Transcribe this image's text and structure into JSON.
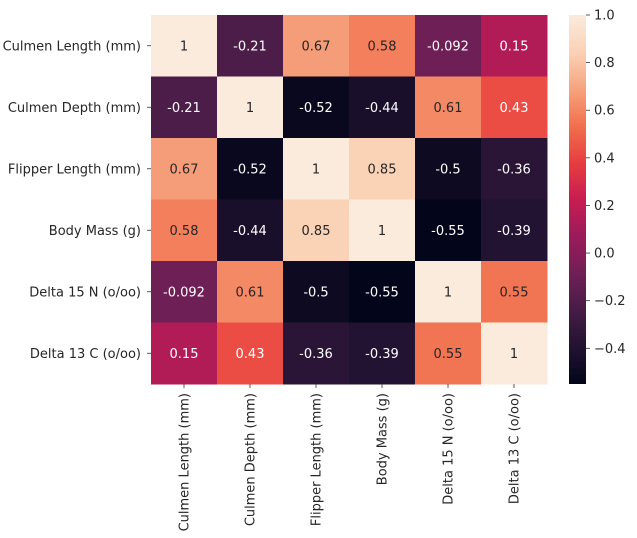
{
  "chart_data": {
    "type": "heatmap",
    "title": "",
    "xlabel": "",
    "ylabel": "",
    "labels": [
      "Culmen Length (mm)",
      "Culmen Depth (mm)",
      "Flipper Length (mm)",
      "Body Mass (g)",
      "Delta 15 N (o/oo)",
      "Delta 13 C (o/oo)"
    ],
    "matrix": [
      [
        1,
        -0.21,
        0.67,
        0.58,
        -0.092,
        0.15
      ],
      [
        -0.21,
        1,
        -0.52,
        -0.44,
        0.61,
        0.43
      ],
      [
        0.67,
        -0.52,
        1,
        0.85,
        -0.5,
        -0.36
      ],
      [
        0.58,
        -0.44,
        0.85,
        1,
        -0.55,
        -0.39
      ],
      [
        -0.092,
        0.61,
        -0.5,
        -0.55,
        1,
        0.55
      ],
      [
        0.15,
        0.43,
        -0.36,
        -0.39,
        0.55,
        1
      ]
    ],
    "annotations": [
      [
        "1",
        "-0.21",
        "0.67",
        "0.58",
        "-0.092",
        "0.15"
      ],
      [
        "-0.21",
        "1",
        "-0.52",
        "-0.44",
        "0.61",
        "0.43"
      ],
      [
        "0.67",
        "-0.52",
        "1",
        "0.85",
        "-0.5",
        "-0.36"
      ],
      [
        "0.58",
        "-0.44",
        "0.85",
        "1",
        "-0.55",
        "-0.39"
      ],
      [
        "-0.092",
        "0.61",
        "-0.5",
        "-0.55",
        "1",
        "0.55"
      ],
      [
        "0.15",
        "0.43",
        "-0.36",
        "-0.39",
        "0.55",
        "1"
      ]
    ],
    "colorbar": {
      "range": [
        -0.55,
        1.0
      ],
      "ticks": [
        -0.4,
        -0.2,
        0.0,
        0.2,
        0.4,
        0.6,
        0.8,
        1.0
      ],
      "tick_labels": [
        "−0.4",
        "−0.2",
        "0.0",
        "0.2",
        "0.4",
        "0.6",
        "0.8",
        "1.0"
      ]
    },
    "colormap": {
      "name": "rocket",
      "stops": [
        "#03051a",
        "#221331",
        "#451c47",
        "#701f57",
        "#9b1b5b",
        "#c81c51",
        "#e73d3f",
        "#f2704e",
        "#f6a47e",
        "#fad2b6",
        "#faebdd"
      ]
    }
  }
}
